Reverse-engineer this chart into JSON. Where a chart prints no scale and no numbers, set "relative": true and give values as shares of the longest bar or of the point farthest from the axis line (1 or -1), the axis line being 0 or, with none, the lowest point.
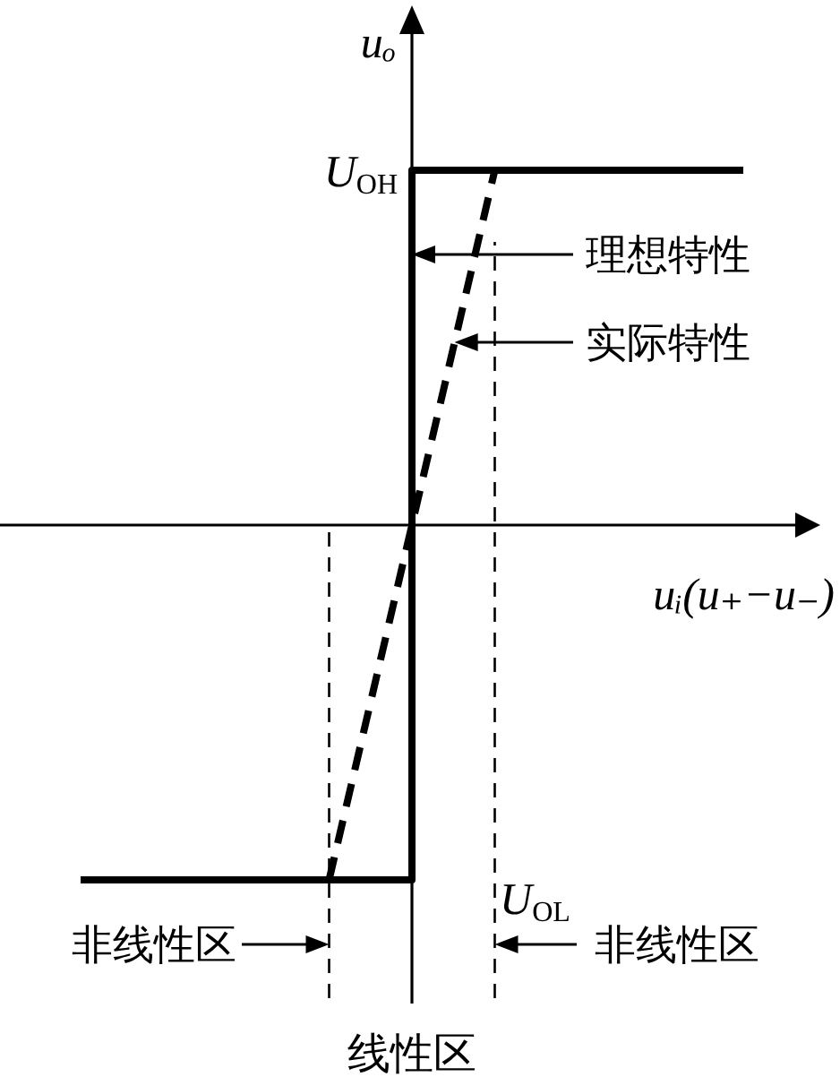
{
  "chart_data": {
    "type": "line",
    "relative": true,
    "xlabel": "uᵢ(u₊−u₋)",
    "ylabel": "uₒ",
    "categories": [
      null,
      null,
      null,
      null,
      null,
      null,
      null,
      null,
      null
    ],
    "series": [
      {
        "type": "step",
        "color": "#000000",
        "line_style": "solid",
        "values": [
          -1,
          -1,
          -1,
          -1,
          1,
          1,
          1,
          1,
          1
        ]
      },
      {
        "color": "#000000",
        "line_style": "dashed",
        "values": [
          null,
          null,
          null,
          -1,
          0,
          1,
          null,
          null,
          null
        ]
      }
    ],
    "annotations": [
      "U$_{OH}$",
      "理想特性",
      "实际特性",
      "U$_{OL}$",
      "非线性区",
      "非线性区",
      "线性区"
    ]
  }
}
